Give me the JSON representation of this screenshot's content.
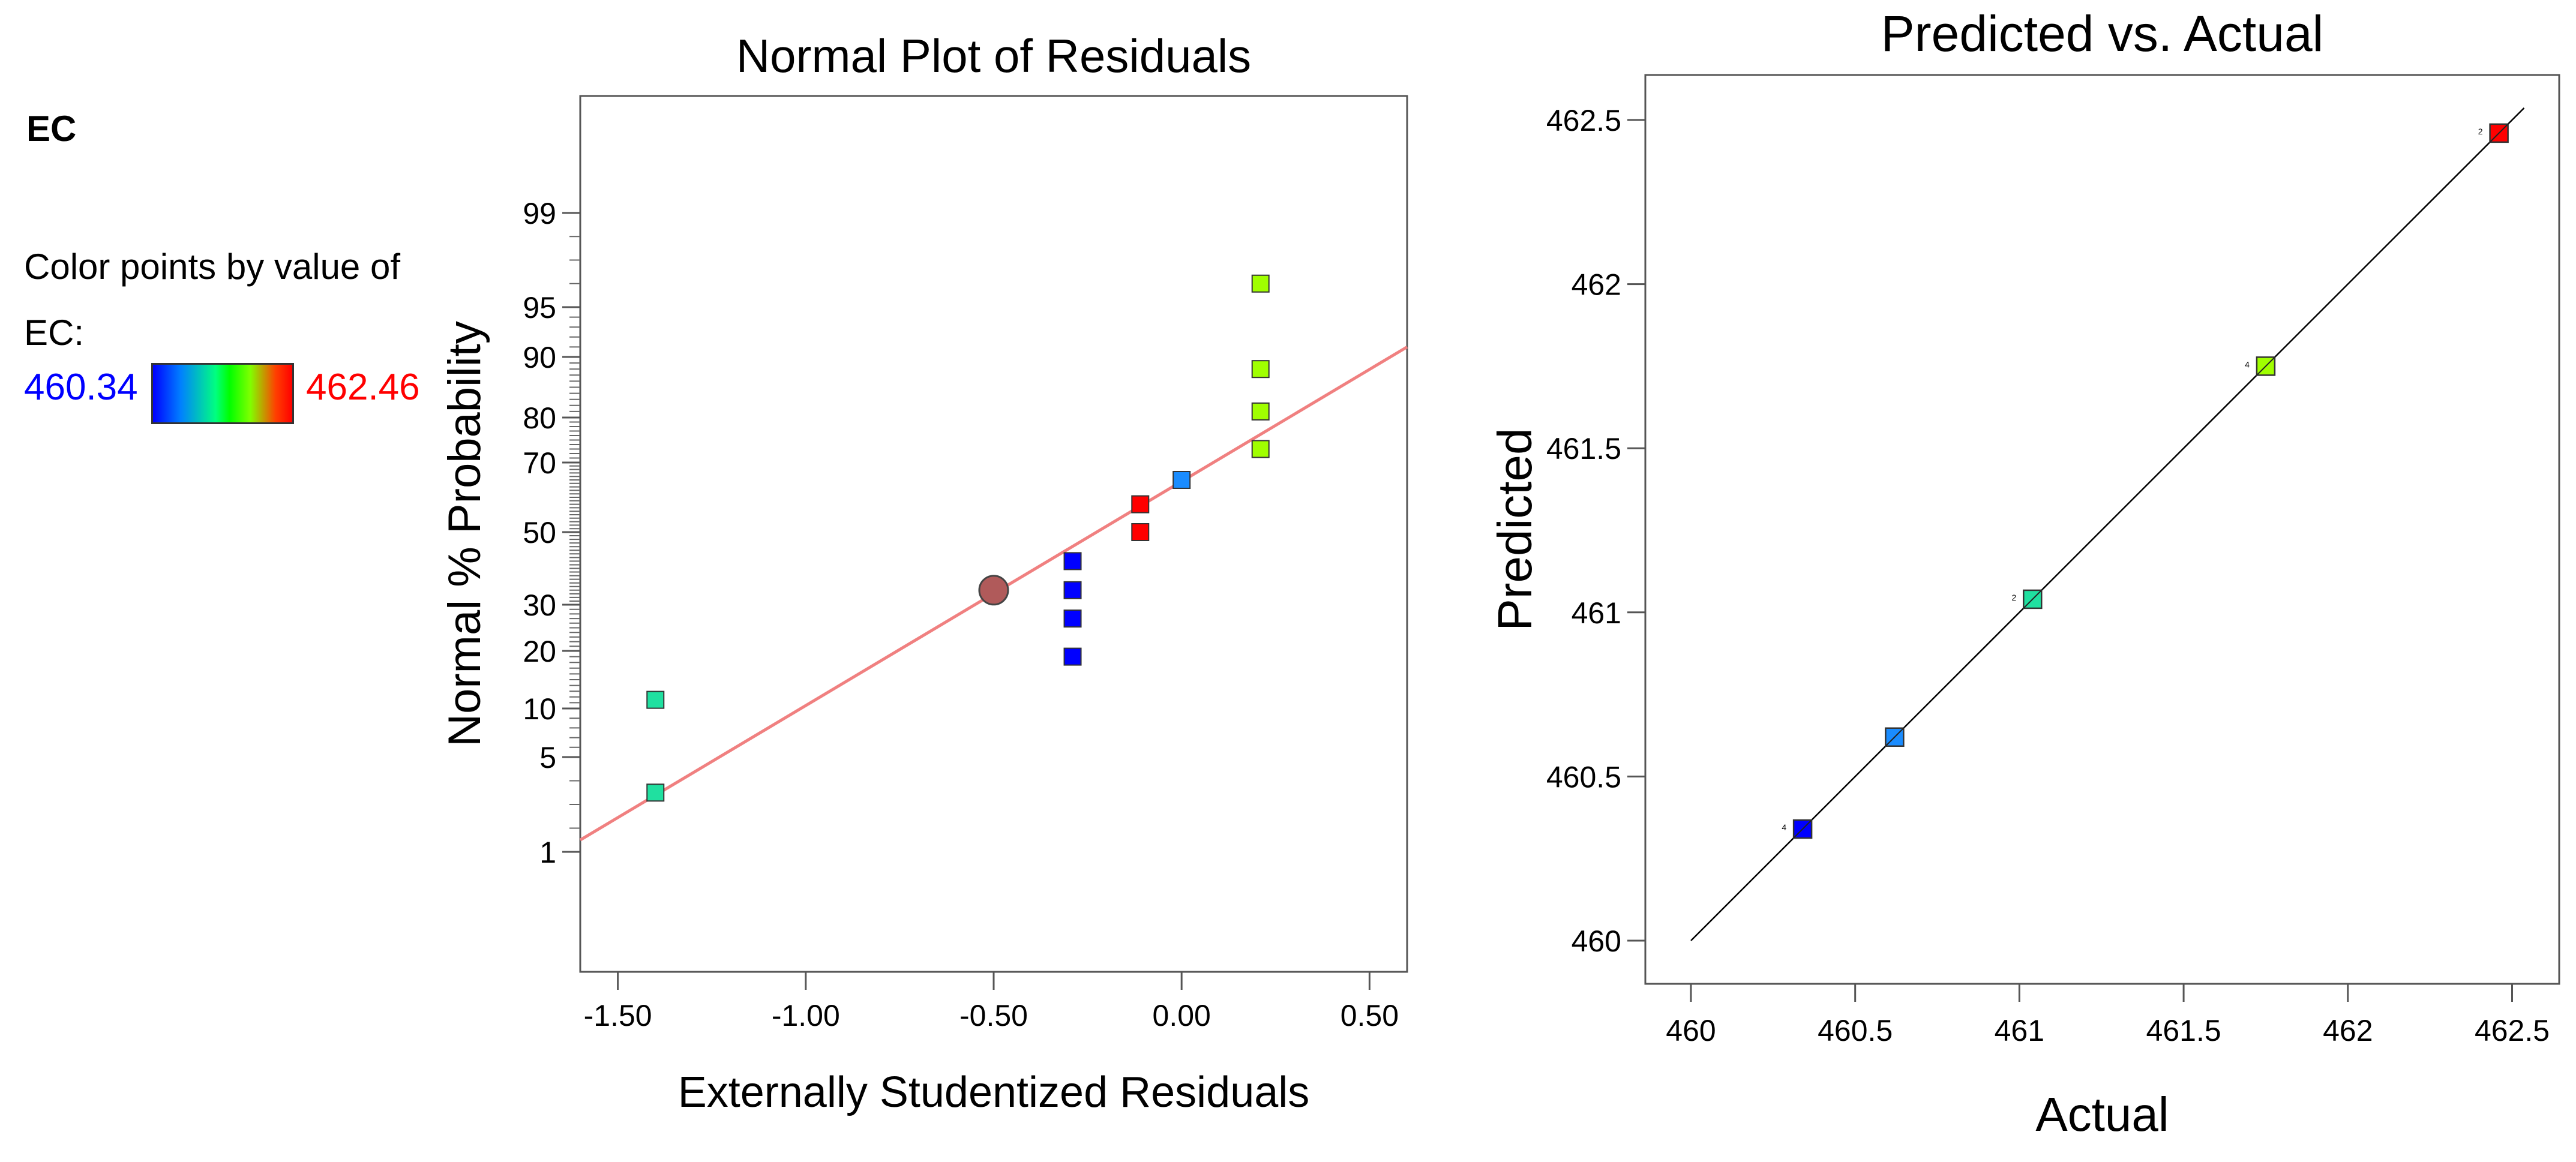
{
  "legend": {
    "title": "EC",
    "caption": "Color points by value of EC:",
    "low_value": "460.34",
    "high_value": "462.46",
    "low_color": "#0000ff",
    "high_color": "#ff0000"
  },
  "chart_data": [
    {
      "type": "scatter",
      "title": "Normal Plot of Residuals",
      "xlabel": "Externally Studentized Residuals",
      "ylabel": "Normal % Probability",
      "xlim": [
        -1.6,
        0.6
      ],
      "x_ticks": [
        -1.5,
        -1.0,
        -0.5,
        0.0,
        0.5
      ],
      "x_tick_labels": [
        "-1.50",
        "-1.00",
        "-0.50",
        "0.00",
        "0.50"
      ],
      "y_ticks": [
        1,
        5,
        10,
        20,
        30,
        50,
        70,
        80,
        90,
        95,
        99
      ],
      "y_tick_labels": [
        "1",
        "5",
        "10",
        "20",
        "30",
        "50",
        "70",
        "80",
        "90",
        "95",
        "99"
      ],
      "reference_line": {
        "x": [
          -1.6,
          0.6
        ],
        "y": [
          1.5,
          91
        ],
        "color": "#f08080"
      },
      "highlight_point": {
        "x": -0.5,
        "y": 34,
        "color": "#b05a5a"
      },
      "points": [
        {
          "x": -1.4,
          "y": 3.5,
          "color": "#20e0a0"
        },
        {
          "x": -1.4,
          "y": 11.5,
          "color": "#20e0a0"
        },
        {
          "x": -0.29,
          "y": 19,
          "color": "#0000ff"
        },
        {
          "x": -0.29,
          "y": 27,
          "color": "#0000ff"
        },
        {
          "x": -0.29,
          "y": 34,
          "color": "#0000ff"
        },
        {
          "x": -0.29,
          "y": 42,
          "color": "#0000ff"
        },
        {
          "x": -0.11,
          "y": 50,
          "color": "#ff0000"
        },
        {
          "x": -0.11,
          "y": 58,
          "color": "#ff0000"
        },
        {
          "x": 0.0,
          "y": 65,
          "color": "#1a8cff"
        },
        {
          "x": 0.21,
          "y": 73,
          "color": "#a0ff00"
        },
        {
          "x": 0.21,
          "y": 81,
          "color": "#a0ff00"
        },
        {
          "x": 0.21,
          "y": 88,
          "color": "#a0ff00"
        },
        {
          "x": 0.21,
          "y": 96,
          "color": "#a0ff00"
        }
      ]
    },
    {
      "type": "scatter",
      "title": "Predicted vs. Actual",
      "xlabel": "Actual",
      "ylabel": "Predicted",
      "xlim": [
        459.85,
        462.65
      ],
      "ylim": [
        459.85,
        462.65
      ],
      "x_ticks": [
        460,
        460.5,
        461,
        461.5,
        462,
        462.5
      ],
      "x_tick_labels": [
        "460",
        "460.5",
        "461",
        "461.5",
        "462",
        "462.5"
      ],
      "y_ticks": [
        460,
        460.5,
        461,
        461.5,
        462,
        462.5
      ],
      "y_tick_labels": [
        "460",
        "460.5",
        "461",
        "461.5",
        "462",
        "462.5"
      ],
      "reference_line": {
        "x": [
          460,
          462.5
        ],
        "y": [
          460,
          462.5
        ],
        "color": "#000000"
      },
      "points": [
        {
          "x": 460.34,
          "y": 460.34,
          "color": "#0000ff",
          "count": "4"
        },
        {
          "x": 460.62,
          "y": 460.62,
          "color": "#1a8cff",
          "count": ""
        },
        {
          "x": 461.04,
          "y": 461.04,
          "color": "#20e0a0",
          "count": "2"
        },
        {
          "x": 461.75,
          "y": 461.75,
          "color": "#a0ff00",
          "count": "4"
        },
        {
          "x": 462.46,
          "y": 462.46,
          "color": "#ff0000",
          "count": "2"
        }
      ]
    }
  ]
}
